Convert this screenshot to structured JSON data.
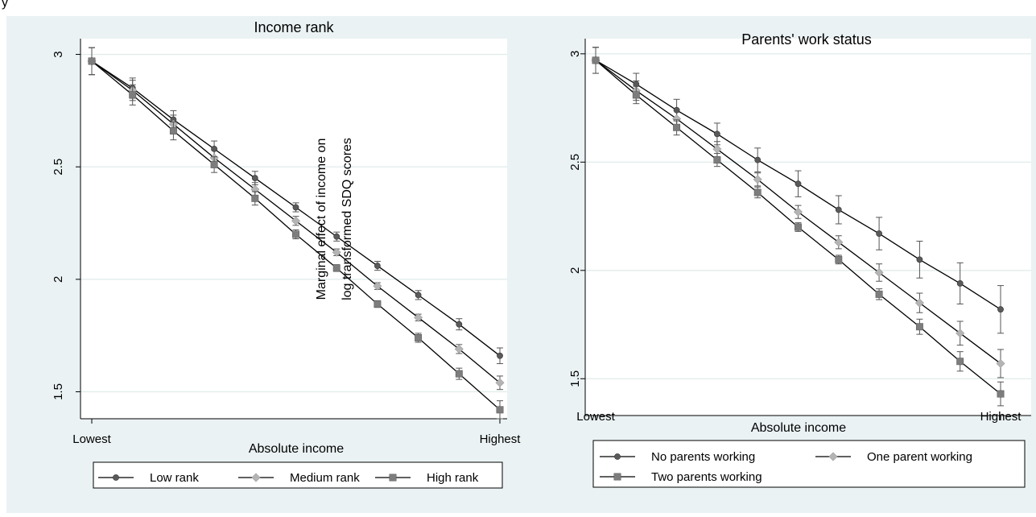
{
  "top_fragment": "y",
  "chart_data": [
    {
      "type": "line",
      "title": "Income rank",
      "xlabel": "Absolute income",
      "ylabel": "",
      "x_tick_labels": [
        "Lowest",
        "Highest"
      ],
      "ylim": [
        1.38,
        3.07
      ],
      "yticks": [
        1.5,
        2,
        2.5,
        3
      ],
      "ytick_labels": [
        "1.5",
        "2",
        "2.5",
        "3"
      ],
      "grid": true,
      "error_bars": true,
      "legend_position": "bottom",
      "series": [
        {
          "name": "Low rank",
          "marker": "circle",
          "color": "#5a5a5a",
          "values": [
            2.97,
            2.85,
            2.71,
            2.58,
            2.45,
            2.32,
            2.19,
            2.06,
            1.93,
            1.8,
            1.66
          ],
          "err": [
            0.06,
            0.045,
            0.04,
            0.035,
            0.03,
            0.02,
            0.02,
            0.02,
            0.02,
            0.025,
            0.035
          ]
        },
        {
          "name": "Medium rank",
          "marker": "diamond",
          "color": "#b4b4b4",
          "values": [
            2.97,
            2.84,
            2.69,
            2.54,
            2.4,
            2.26,
            2.12,
            1.97,
            1.83,
            1.69,
            1.54
          ],
          "err": [
            0.06,
            0.045,
            0.04,
            0.035,
            0.03,
            0.02,
            0.015,
            0.015,
            0.015,
            0.02,
            0.03
          ]
        },
        {
          "name": "High rank",
          "marker": "square",
          "color": "#7d7d7d",
          "values": [
            2.97,
            2.82,
            2.66,
            2.51,
            2.36,
            2.2,
            2.05,
            1.89,
            1.74,
            1.58,
            1.42
          ],
          "err": [
            0.06,
            0.045,
            0.04,
            0.035,
            0.03,
            0.02,
            0.015,
            0.015,
            0.02,
            0.025,
            0.04
          ]
        }
      ],
      "annotation": [
        "Marginal effect of income on",
        "log transformed SDQ scores"
      ]
    },
    {
      "type": "line",
      "title": "Parents' work status",
      "xlabel": "Absolute income",
      "ylabel": "",
      "x_tick_labels": [
        "Lowest",
        "Highest"
      ],
      "ylim": [
        1.33,
        3.07
      ],
      "yticks": [
        1.5,
        2,
        2.5,
        3
      ],
      "ytick_labels": [
        "1.5",
        "2",
        "2.5",
        "3"
      ],
      "grid": true,
      "error_bars": true,
      "legend_position": "bottom",
      "series": [
        {
          "name": "No parents working",
          "marker": "circle",
          "color": "#5a5a5a",
          "values": [
            2.97,
            2.86,
            2.74,
            2.63,
            2.51,
            2.4,
            2.28,
            2.17,
            2.05,
            1.94,
            1.82
          ],
          "err": [
            0.06,
            0.05,
            0.05,
            0.05,
            0.055,
            0.06,
            0.065,
            0.075,
            0.085,
            0.095,
            0.11
          ]
        },
        {
          "name": "One parent working",
          "marker": "diamond",
          "color": "#b4b4b4",
          "values": [
            2.97,
            2.83,
            2.7,
            2.56,
            2.42,
            2.27,
            2.13,
            1.99,
            1.85,
            1.71,
            1.57
          ],
          "err": [
            0.06,
            0.045,
            0.04,
            0.035,
            0.03,
            0.03,
            0.03,
            0.04,
            0.045,
            0.055,
            0.065
          ]
        },
        {
          "name": "Two parents working",
          "marker": "square",
          "color": "#7d7d7d",
          "values": [
            2.97,
            2.81,
            2.66,
            2.51,
            2.36,
            2.2,
            2.05,
            1.89,
            1.74,
            1.58,
            1.43
          ],
          "err": [
            0.06,
            0.04,
            0.035,
            0.03,
            0.025,
            0.02,
            0.02,
            0.025,
            0.035,
            0.045,
            0.055
          ]
        }
      ]
    }
  ]
}
